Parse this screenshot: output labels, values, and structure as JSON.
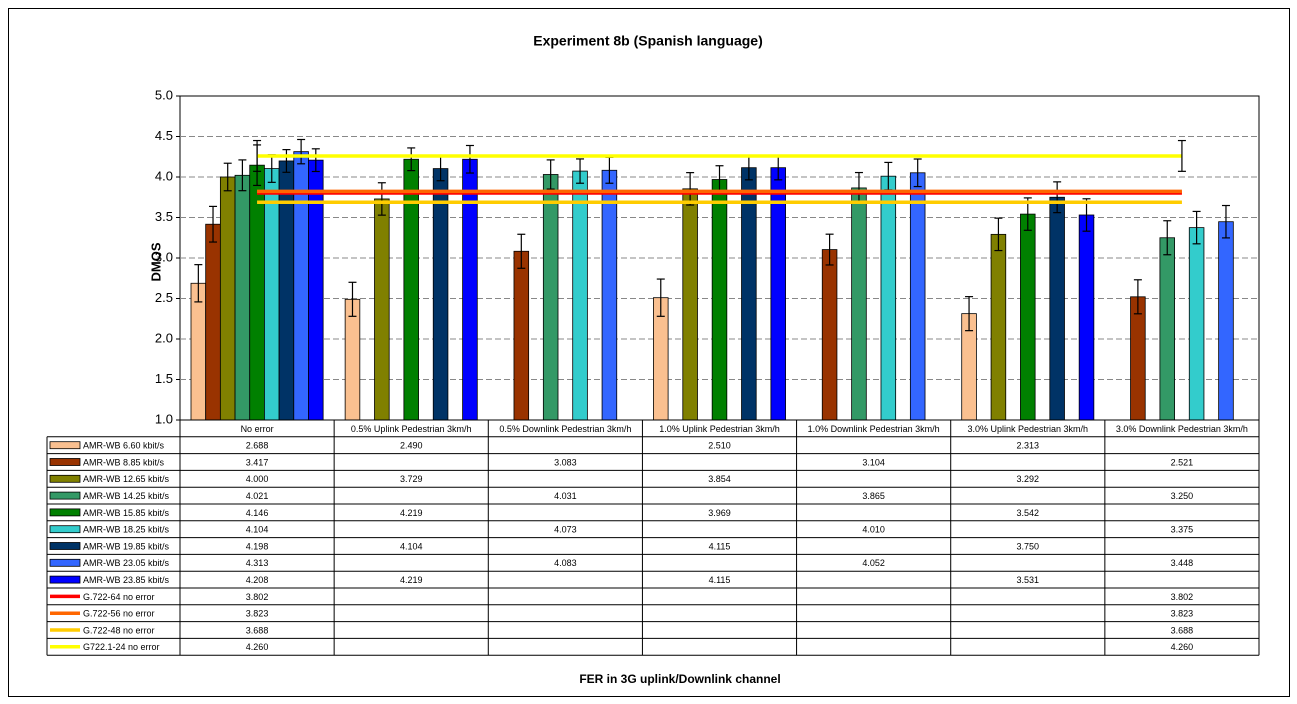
{
  "chart_data": {
    "type": "bar",
    "title": "Experiment 8b (Spanish language)",
    "y_label": "DMOS",
    "x_label": "FER in 3G uplink/Downlink channel",
    "categories": [
      "No error",
      "0.5% Uplink Pedestrian 3km/h",
      "0.5% Downlink Pedestrian 3km/h",
      "1.0% Uplink Pedestrian 3km/h",
      "1.0% Downlink Pedestrian 3km/h",
      "3.0% Uplink Pedestrian 3km/h",
      "3.0% Downlink Pedestrian 3km/h"
    ],
    "ylim": [
      1,
      5
    ],
    "yticks": [
      {
        "value": 1,
        "label": "1.0"
      },
      1.5,
      {
        "value": 2,
        "label": "2.0"
      },
      2.5,
      {
        "value": 3,
        "label": "3.0"
      },
      3.5,
      {
        "value": 4,
        "label": "4.0"
      },
      4.5,
      {
        "value": 5,
        "label": "5.0"
      }
    ],
    "grid": true,
    "series": [
      {
        "name": "AMR-WB 6.60 kbit/s",
        "color": "#fac090",
        "values": [
          2.688,
          2.49,
          null,
          2.51,
          null,
          2.313,
          null
        ],
        "value_labels": [
          "2.688",
          "2.490",
          null,
          "2.510",
          null,
          "2.313",
          null
        ],
        "errors": [
          0.23,
          0.21,
          null,
          0.23,
          null,
          0.21,
          null
        ]
      },
      {
        "name": "AMR-WB 8.85 kbit/s",
        "color": "#993300",
        "values": [
          3.417,
          null,
          3.083,
          null,
          3.104,
          null,
          2.521
        ],
        "value_labels": [
          "3.417",
          null,
          "3.083",
          null,
          "3.104",
          null,
          "2.521"
        ],
        "errors": [
          0.22,
          null,
          0.21,
          null,
          0.19,
          null,
          0.21
        ]
      },
      {
        "name": "AMR-WB 12.65 kbit/s",
        "color": "#808000",
        "values": [
          4.0,
          3.729,
          null,
          3.854,
          null,
          3.292,
          null
        ],
        "value_labels": [
          "4.000",
          "3.729",
          null,
          "3.854",
          null,
          "3.292",
          null
        ],
        "errors": [
          0.17,
          0.2,
          null,
          0.2,
          null,
          0.2,
          null
        ]
      },
      {
        "name": "AMR-WB 14.25 kbit/s",
        "color": "#339966",
        "values": [
          4.021,
          null,
          4.031,
          null,
          3.865,
          null,
          3.25
        ],
        "value_labels": [
          "4.021",
          null,
          "4.031",
          null,
          "3.865",
          null,
          "3.250"
        ],
        "errors": [
          0.19,
          null,
          0.18,
          null,
          0.19,
          null,
          0.21
        ]
      },
      {
        "name": "AMR-WB 15.85 kbit/s",
        "color": "#008000",
        "values": [
          4.146,
          4.219,
          null,
          3.969,
          null,
          3.542,
          null
        ],
        "value_labels": [
          "4.146",
          "4.219",
          null,
          "3.969",
          null,
          "3.542",
          null
        ],
        "errors": [
          0.25,
          0.14,
          null,
          0.17,
          null,
          0.2,
          null
        ]
      },
      {
        "name": "AMR-WB 18.25 kbit/s",
        "color": "#33cccc",
        "values": [
          4.104,
          null,
          4.073,
          null,
          4.01,
          null,
          3.375
        ],
        "value_labels": [
          "4.104",
          null,
          "4.073",
          null,
          "4.010",
          null,
          "3.375"
        ],
        "errors": [
          0.17,
          null,
          0.15,
          null,
          0.17,
          null,
          0.2
        ]
      },
      {
        "name": "AMR-WB 19.85 kbit/s",
        "color": "#003366",
        "values": [
          4.198,
          4.104,
          null,
          4.115,
          null,
          3.75,
          null
        ],
        "value_labels": [
          "4.198",
          "4.104",
          null,
          "4.115",
          null,
          "3.750",
          null
        ],
        "errors": [
          0.14,
          0.15,
          null,
          0.15,
          null,
          0.19,
          null
        ]
      },
      {
        "name": "AMR-WB 23.05 kbit/s",
        "color": "#3366ff",
        "values": [
          4.313,
          null,
          4.083,
          null,
          4.052,
          null,
          3.448
        ],
        "value_labels": [
          "4.313",
          null,
          "4.083",
          null,
          "4.052",
          null,
          "3.448"
        ],
        "errors": [
          0.15,
          null,
          0.16,
          null,
          0.17,
          null,
          0.2
        ]
      },
      {
        "name": "AMR-WB 23.85 kbit/s",
        "color": "#0000ff",
        "values": [
          4.208,
          4.219,
          null,
          4.115,
          null,
          3.531,
          null
        ],
        "value_labels": [
          "4.208",
          "4.219",
          null,
          "4.115",
          null,
          "3.531",
          null
        ],
        "errors": [
          0.14,
          0.17,
          null,
          0.15,
          null,
          0.2,
          null
        ]
      },
      {
        "name": "G.722-64 no error",
        "color": "#ff0000",
        "type": "line",
        "values": [
          3.802,
          null,
          null,
          null,
          null,
          null,
          3.802
        ],
        "value_labels": [
          "3.802",
          null,
          null,
          null,
          null,
          null,
          "3.802"
        ]
      },
      {
        "name": "G.722-56 no error",
        "color": "#ff6600",
        "type": "line",
        "values": [
          3.823,
          null,
          null,
          null,
          null,
          null,
          3.823
        ],
        "value_labels": [
          "3.823",
          null,
          null,
          null,
          null,
          null,
          "3.823"
        ]
      },
      {
        "name": "G.722-48 no error",
        "color": "#ffcc00",
        "type": "line",
        "values": [
          3.688,
          null,
          null,
          null,
          null,
          null,
          3.688
        ],
        "value_labels": [
          "3.688",
          null,
          null,
          null,
          null,
          null,
          "3.688"
        ]
      },
      {
        "name": "G722.1-24 no error",
        "color": "#ffff00",
        "type": "line",
        "values": [
          4.26,
          null,
          null,
          null,
          null,
          null,
          4.26
        ],
        "value_labels": [
          "4.260",
          null,
          null,
          null,
          null,
          null,
          "4.260"
        ],
        "errors": [
          0.19,
          null,
          null,
          null,
          null,
          null,
          0.19
        ]
      }
    ]
  }
}
